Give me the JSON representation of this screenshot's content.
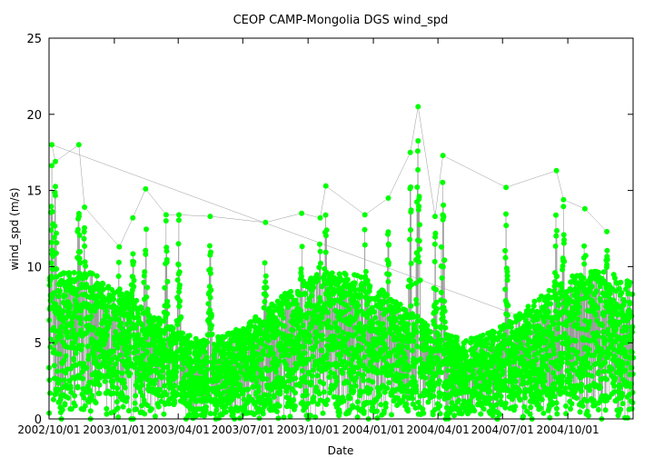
{
  "chart_data": {
    "type": "scatter",
    "title": "CEOP CAMP-Mongolia DGS  wind_spd",
    "xlabel": "Date",
    "ylabel": "wind_spd (m/s)",
    "x_range": [
      "2002-10-01",
      "2005-01-01"
    ],
    "ylim": [
      0,
      25
    ],
    "y_ticks": [
      0,
      5,
      10,
      15,
      20,
      25
    ],
    "x_ticks": [
      "2002/10/01",
      "2003/01/01",
      "2003/04/01",
      "2003/07/01",
      "2003/10/01",
      "2004/01/01",
      "2004/04/01",
      "2004/07/01",
      "2004/10/01"
    ],
    "grid": false,
    "legend": "none",
    "series": [
      {
        "color": "#00ff00",
        "marker": "circle",
        "line": "thin gray connecting line",
        "note_peaks": [
          {
            "x": "2002-10-05",
            "y": 18.0
          },
          {
            "x": "2002-10-10",
            "y": 16.9
          },
          {
            "x": "2002-11-12",
            "y": 18.0
          },
          {
            "x": "2002-11-20",
            "y": 13.9
          },
          {
            "x": "2003-01-08",
            "y": 11.3
          },
          {
            "x": "2003-01-27",
            "y": 13.2
          },
          {
            "x": "2003-02-14",
            "y": 15.1
          },
          {
            "x": "2003-03-15",
            "y": 13.4
          },
          {
            "x": "2003-04-02",
            "y": 13.4
          },
          {
            "x": "2003-05-16",
            "y": 13.3
          },
          {
            "x": "2003-08-02",
            "y": 12.9
          },
          {
            "x": "2003-09-22",
            "y": 13.5
          },
          {
            "x": "2003-10-18",
            "y": 13.2
          },
          {
            "x": "2003-10-26",
            "y": 15.3
          },
          {
            "x": "2003-12-20",
            "y": 13.4
          },
          {
            "x": "2004-01-22",
            "y": 14.5
          },
          {
            "x": "2004-02-22",
            "y": 17.5
          },
          {
            "x": "2004-03-04",
            "y": 20.5
          },
          {
            "x": "2004-03-28",
            "y": 13.3
          },
          {
            "x": "2004-04-08",
            "y": 17.3
          },
          {
            "x": "2004-07-06",
            "y": 15.2
          },
          {
            "x": "2004-09-15",
            "y": 16.3
          },
          {
            "x": "2004-09-25",
            "y": 14.4
          },
          {
            "x": "2004-10-25",
            "y": 13.8
          },
          {
            "x": "2004-11-25",
            "y": 12.3
          }
        ]
      }
    ]
  }
}
